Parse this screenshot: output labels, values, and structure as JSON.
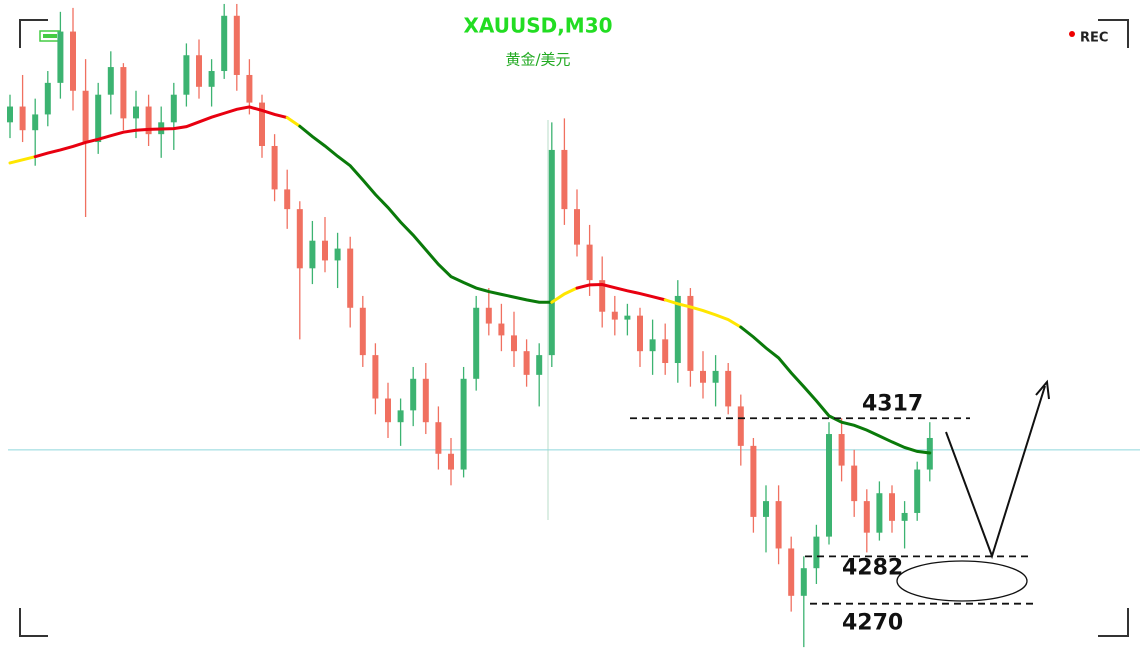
{
  "chart_data": {
    "type": "candlestick",
    "title": "XAUUSD,M30",
    "subtitle": "黄金/美元",
    "badge": "REC",
    "ylim": [
      4257,
      4423
    ],
    "up_color": "#3cb371",
    "down_color": "#f07060",
    "crosshair": 4309,
    "crosshair_color": "#8fd8dc",
    "ohlc": [
      [
        4392,
        4399,
        4388,
        4396
      ],
      [
        4396,
        4404,
        4387,
        4390
      ],
      [
        4390,
        4398,
        4381,
        4394
      ],
      [
        4394,
        4405,
        4391,
        4402
      ],
      [
        4402,
        4420,
        4398,
        4415
      ],
      [
        4415,
        4421,
        4395,
        4400
      ],
      [
        4400,
        4408,
        4368,
        4387
      ],
      [
        4387,
        4402,
        4384,
        4399
      ],
      [
        4399,
        4410,
        4394,
        4406
      ],
      [
        4406,
        4407,
        4390,
        4393
      ],
      [
        4393,
        4400,
        4388,
        4396
      ],
      [
        4396,
        4399,
        4386,
        4389
      ],
      [
        4389,
        4396,
        4383,
        4392
      ],
      [
        4392,
        4402,
        4385,
        4399
      ],
      [
        4399,
        4412,
        4396,
        4409
      ],
      [
        4409,
        4413,
        4398,
        4401
      ],
      [
        4401,
        4408,
        4396,
        4405
      ],
      [
        4405,
        4422,
        4403,
        4419
      ],
      [
        4419,
        4422,
        4400,
        4404
      ],
      [
        4404,
        4408,
        4394,
        4397
      ],
      [
        4397,
        4399,
        4383,
        4386
      ],
      [
        4386,
        4389,
        4372,
        4375
      ],
      [
        4375,
        4380,
        4365,
        4370
      ],
      [
        4370,
        4372,
        4337,
        4355
      ],
      [
        4355,
        4367,
        4351,
        4362
      ],
      [
        4362,
        4368,
        4354,
        4357
      ],
      [
        4357,
        4364,
        4350,
        4360
      ],
      [
        4360,
        4363,
        4340,
        4345
      ],
      [
        4345,
        4348,
        4330,
        4333
      ],
      [
        4333,
        4336,
        4318,
        4322
      ],
      [
        4322,
        4326,
        4312,
        4316
      ],
      [
        4316,
        4322,
        4310,
        4319
      ],
      [
        4319,
        4330,
        4315,
        4327
      ],
      [
        4327,
        4331,
        4313,
        4316
      ],
      [
        4316,
        4320,
        4304,
        4308
      ],
      [
        4308,
        4312,
        4300,
        4304
      ],
      [
        4304,
        4330,
        4302,
        4327
      ],
      [
        4327,
        4348,
        4324,
        4345
      ],
      [
        4345,
        4350,
        4338,
        4341
      ],
      [
        4341,
        4346,
        4334,
        4338
      ],
      [
        4338,
        4344,
        4330,
        4334
      ],
      [
        4334,
        4337,
        4325,
        4328
      ],
      [
        4328,
        4336,
        4320,
        4333
      ],
      [
        4333,
        4392,
        4330,
        4385
      ],
      [
        4385,
        4393,
        4366,
        4370
      ],
      [
        4370,
        4375,
        4358,
        4361
      ],
      [
        4361,
        4366,
        4348,
        4352
      ],
      [
        4352,
        4358,
        4340,
        4344
      ],
      [
        4344,
        4348,
        4338,
        4342
      ],
      [
        4342,
        4346,
        4338,
        4343
      ],
      [
        4343,
        4345,
        4330,
        4334
      ],
      [
        4334,
        4342,
        4328,
        4337
      ],
      [
        4337,
        4341,
        4328,
        4331
      ],
      [
        4331,
        4352,
        4326,
        4348
      ],
      [
        4348,
        4350,
        4325,
        4329
      ],
      [
        4329,
        4334,
        4322,
        4326
      ],
      [
        4326,
        4333,
        4320,
        4329
      ],
      [
        4329,
        4331,
        4318,
        4320
      ],
      [
        4320,
        4323,
        4305,
        4310
      ],
      [
        4310,
        4312,
        4288,
        4292
      ],
      [
        4292,
        4300,
        4283,
        4296
      ],
      [
        4296,
        4300,
        4280,
        4284
      ],
      [
        4284,
        4287,
        4268,
        4272
      ],
      [
        4272,
        4282,
        4259,
        4279
      ],
      [
        4279,
        4290,
        4275,
        4287
      ],
      [
        4287,
        4316,
        4285,
        4313
      ],
      [
        4313,
        4317,
        4301,
        4305
      ],
      [
        4305,
        4309,
        4292,
        4296
      ],
      [
        4296,
        4299,
        4283,
        4288
      ],
      [
        4288,
        4301,
        4286,
        4298
      ],
      [
        4298,
        4300,
        4288,
        4291
      ],
      [
        4291,
        4296,
        4284,
        4293
      ],
      [
        4293,
        4306,
        4291,
        4304
      ],
      [
        4304,
        4316,
        4301,
        4312
      ]
    ],
    "ma": {
      "values": [
        4381.7,
        4382.5,
        4383.3,
        4384.2,
        4385,
        4385.9,
        4386.9,
        4387.7,
        4388.6,
        4389.5,
        4390,
        4390.2,
        4390.3,
        4390.4,
        4390.9,
        4392.1,
        4393.3,
        4394.3,
        4395.3,
        4395.9,
        4395,
        4394,
        4393.2,
        4391,
        4388.4,
        4386,
        4383.4,
        4381,
        4377.4,
        4373.7,
        4370.4,
        4366.7,
        4363.4,
        4359.7,
        4356,
        4352.9,
        4351.4,
        4350,
        4349.1,
        4348.4,
        4347.7,
        4347,
        4346.4,
        4346.4,
        4348.5,
        4350,
        4350.8,
        4350.9,
        4350.1,
        4349.3,
        4348.6,
        4347.8,
        4347,
        4346,
        4345.2,
        4344.3,
        4343.2,
        4342,
        4340.1,
        4337.6,
        4334.8,
        4332.3,
        4328.5,
        4325,
        4321.4,
        4317.6,
        4316,
        4315.2,
        4314,
        4312.5,
        4311,
        4309.6,
        4308.6,
        4308.2
      ],
      "colors": [
        "#ffe600",
        "#ffe600",
        "#e80010",
        "#e80010",
        "#e80010",
        "#e80010",
        "#e80010",
        "#e80010",
        "#e80010",
        "#e80010",
        "#e80010",
        "#e80010",
        "#e80010",
        "#e80010",
        "#e80010",
        "#e80010",
        "#e80010",
        "#e80010",
        "#e80010",
        "#e80010",
        "#e80010",
        "#e80010",
        "#ffe600",
        "#0a7a0a",
        "#0a7a0a",
        "#0a7a0a",
        "#0a7a0a",
        "#0a7a0a",
        "#0a7a0a",
        "#0a7a0a",
        "#0a7a0a",
        "#0a7a0a",
        "#0a7a0a",
        "#0a7a0a",
        "#0a7a0a",
        "#0a7a0a",
        "#0a7a0a",
        "#0a7a0a",
        "#0a7a0a",
        "#0a7a0a",
        "#0a7a0a",
        "#0a7a0a",
        "#0a7a0a",
        "#ffe600",
        "#ffe600",
        "#e80010",
        "#e80010",
        "#e80010",
        "#e80010",
        "#e80010",
        "#e80010",
        "#e80010",
        "#ffe600",
        "#ffe600",
        "#ffe600",
        "#ffe600",
        "#ffe600",
        "#ffe600",
        "#0a7a0a",
        "#0a7a0a",
        "#0a7a0a",
        "#0a7a0a",
        "#0a7a0a",
        "#0a7a0a",
        "#0a7a0a",
        "#0a7a0a",
        "#0a7a0a",
        "#0a7a0a",
        "#0a7a0a",
        "#0a7a0a",
        "#0a7a0a",
        "#0a7a0a",
        "#0a7a0a",
        "#0a7a0a"
      ]
    },
    "levels": [
      4317,
      4282,
      4270
    ]
  }
}
